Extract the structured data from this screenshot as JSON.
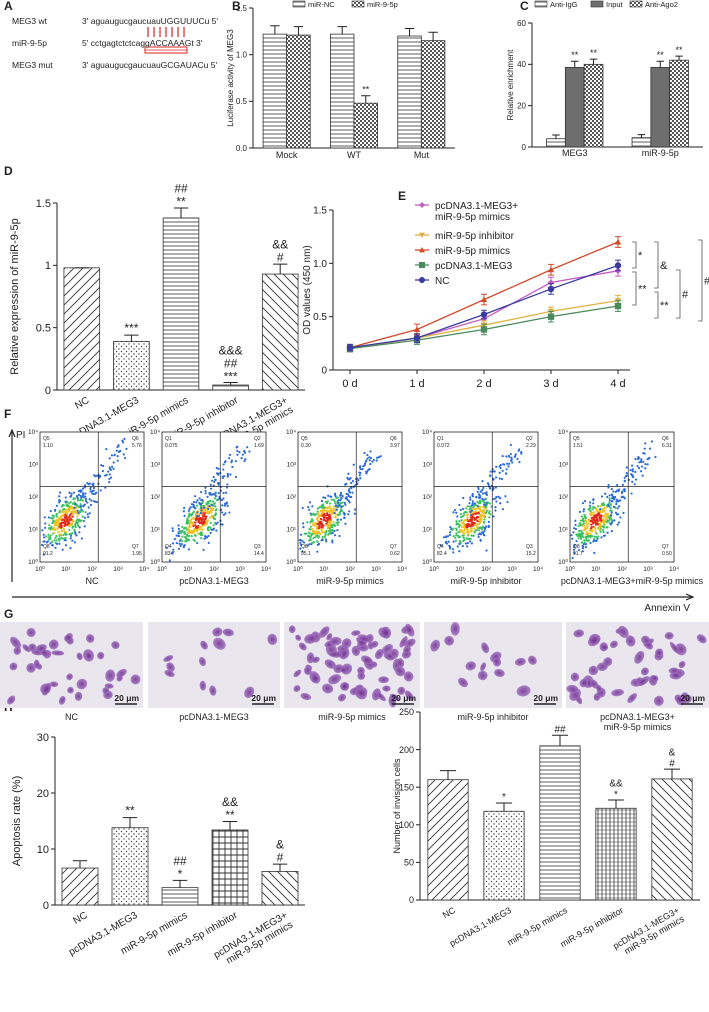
{
  "sequence_panel": {
    "panel": "A",
    "rows": [
      {
        "name": "MEG3 wt",
        "sequence": "3' aguaugucgaucuauUGGUUUCu 5'"
      },
      {
        "name": "miR-9-5p",
        "sequence": "5' cctgagtctctcaggACCAAAGt 3'"
      },
      {
        "name": "MEG3 mut",
        "sequence": "3' aguaugucgaucuauGCGAUACu 5'"
      }
    ]
  },
  "chart_data": [
    {
      "panel": "B",
      "type": "bar",
      "y_label": "Luciferase activity of MEG3",
      "categories": [
        "Mock",
        "WT",
        "Mut"
      ],
      "series": [
        {
          "name": "miR-NC",
          "pattern": "hlines",
          "values": [
            1.22,
            1.22,
            1.2
          ],
          "errors": [
            0.09,
            0.08,
            0.08
          ]
        },
        {
          "name": "miR-9-5p",
          "pattern": "checker",
          "values": [
            1.21,
            0.48,
            1.15
          ],
          "errors": [
            0.09,
            0.08,
            0.09
          ],
          "annotations": [
            null,
            "**",
            null
          ]
        }
      ],
      "ylim": [
        0,
        1.5
      ],
      "yticks": [
        {
          "value": 0,
          "label": "0.0"
        },
        0.5,
        {
          "value": 1,
          "label": "1.0"
        },
        1.5
      ],
      "legend": "top"
    },
    {
      "panel": "C",
      "type": "bar",
      "y_label": "Relative enrichment",
      "categories": [
        "MEG3",
        "miR-9-5p"
      ],
      "series": [
        {
          "name": "Anti-IgG",
          "pattern": "hlines",
          "values": [
            4,
            4.5
          ],
          "errors": [
            1.8,
            1.5
          ]
        },
        {
          "name": "Input",
          "pattern": "solid",
          "color": "#6e6e6e",
          "values": [
            38.5,
            38.5
          ],
          "errors": [
            3,
            3
          ],
          "annotations": [
            "**",
            "**"
          ]
        },
        {
          "name": "Anti-Ago2",
          "pattern": "checker",
          "values": [
            40,
            42
          ],
          "errors": [
            2.5,
            2
          ],
          "annotations": [
            "**",
            "**"
          ]
        }
      ],
      "ylim": [
        0,
        60
      ],
      "yticks": [
        0,
        20,
        40,
        60
      ],
      "legend": "top"
    },
    {
      "panel": "D",
      "type": "bar",
      "y_label": "Relative expression of miR-9-5p",
      "categories": [
        "NC",
        "pcDNA3.1-MEG3",
        "miR-9-5p mimics",
        "miR-9-5p inhibitor",
        "pcDNA3.1-MEG3+\nmiR-9-5p mimics"
      ],
      "values": [
        0.98,
        0.39,
        1.38,
        0.04,
        0.93
      ],
      "errors": [
        0,
        0.05,
        0.08,
        0.02,
        0.08
      ],
      "annotations": [
        null,
        "***",
        "##\n**",
        "&&&\n##\n***",
        "&&\n#"
      ],
      "patterns": [
        "diag",
        "dots",
        "hlines",
        "hlines",
        "backdiag"
      ],
      "ylim": [
        0,
        1.5
      ],
      "yticks": [
        0,
        0.5,
        1,
        1.5
      ]
    },
    {
      "panel": "E",
      "type": "line",
      "y_label": "OD values (450 nm)",
      "categories": [
        "0 d",
        "1 d",
        "2 d",
        "3 d",
        "4 d"
      ],
      "series": [
        {
          "name": "pcDNA3.1-MEG3+\nmiR-9-5p mimics",
          "color": "#c45cc4",
          "marker": "diamond",
          "values": [
            0.2,
            0.3,
            0.48,
            0.82,
            0.93
          ],
          "errors": [
            0.03,
            0.04,
            0.04,
            0.05,
            0.05
          ]
        },
        {
          "name": "miR-9-5p inhibitor",
          "color": "#e0b040",
          "marker": "tri-down",
          "values": [
            0.2,
            0.3,
            0.42,
            0.55,
            0.65
          ],
          "errors": [
            0.03,
            0.04,
            0.04,
            0.04,
            0.05
          ]
        },
        {
          "name": "miR-9-5p mimics",
          "color": "#d24a2a",
          "marker": "tri",
          "values": [
            0.21,
            0.38,
            0.66,
            0.94,
            1.2
          ],
          "errors": [
            0.03,
            0.05,
            0.05,
            0.05,
            0.05
          ]
        },
        {
          "name": "pcDNA3.1-MEG3",
          "color": "#4a8a5a",
          "marker": "square",
          "values": [
            0.2,
            0.28,
            0.38,
            0.5,
            0.6
          ],
          "errors": [
            0.03,
            0.04,
            0.05,
            0.05,
            0.05
          ]
        },
        {
          "name": "NC",
          "color": "#3a3aa0",
          "marker": "circle",
          "values": [
            0.21,
            0.3,
            0.52,
            0.76,
            0.98
          ],
          "errors": [
            0.03,
            0.04,
            0.04,
            0.05,
            0.05
          ]
        }
      ],
      "ylim": [
        0,
        1.5
      ],
      "yticks": [
        0,
        0.5,
        {
          "value": 1,
          "label": "1.0"
        },
        1.5
      ],
      "bracket_labels": [
        "*",
        "**",
        "&",
        "**",
        "#",
        "##"
      ]
    },
    {
      "panel": "H",
      "type": "bar",
      "y_label": "Apoptosis rate (%)",
      "categories": [
        "NC",
        "pcDNA3.1-MEG3",
        "miR-9-5p mimics",
        "miR-9-5p inhibitor",
        "pcDNA3.1-MEG3+\nmiR-9-5p mimics"
      ],
      "values": [
        6.6,
        13.8,
        3.1,
        13.4,
        6.0
      ],
      "errors": [
        1.3,
        1.8,
        1.3,
        1.5,
        1.3
      ],
      "annotations": [
        null,
        "**",
        "##\n*",
        "&&\n**",
        "&\n#"
      ],
      "patterns": [
        "diag",
        "dots",
        "hlines",
        "grid",
        "backdiag"
      ],
      "ylim": [
        0,
        30
      ],
      "yticks": [
        0,
        10,
        20,
        30
      ]
    },
    {
      "panel": "I",
      "type": "bar",
      "y_label": "Number of invision cells",
      "categories": [
        "NC",
        "pcDNA3.1-MEG3",
        "miR-9-5p mimics",
        "miR-9-5p inhibitor",
        "pcDNA3.1-MEG3+\nmiR-9-5p mimics"
      ],
      "values": [
        160,
        118,
        205,
        122,
        161
      ],
      "errors": [
        12,
        11,
        14,
        11,
        13
      ],
      "annotations": [
        null,
        "*",
        "##",
        "&&\n*",
        "&\n#"
      ],
      "patterns": [
        "diag",
        "dots",
        "hlines",
        "vlines",
        "backdiag"
      ],
      "ylim": [
        0,
        250
      ],
      "yticks": [
        0,
        50,
        100,
        150,
        200,
        250
      ]
    }
  ],
  "flow_panel": {
    "panel": "F",
    "y_label": "PI",
    "x_label": "Annexin V",
    "ticks": [
      "10⁰",
      "10¹",
      "10²",
      "10³",
      "10⁴"
    ],
    "plots": [
      {
        "caption": "NC",
        "quadrants": [
          {
            "name": "Q5",
            "value": "1.10"
          },
          {
            "name": "Q6",
            "value": "5.76"
          },
          {
            "name": "Q8",
            "value": "91.2"
          },
          {
            "name": "Q7",
            "value": "1.95"
          }
        ]
      },
      {
        "caption": "pcDNA3.1-MEG3",
        "quadrants": [
          {
            "name": "Q1",
            "value": "0.075"
          },
          {
            "name": "Q2",
            "value": "1.69"
          },
          {
            "name": "Q4",
            "value": "83.7"
          },
          {
            "name": "Q3",
            "value": "14.4"
          }
        ]
      },
      {
        "caption": "miR-9-5p mimics",
        "quadrants": [
          {
            "name": "Q5",
            "value": "0.30"
          },
          {
            "name": "Q6",
            "value": "3.97"
          },
          {
            "name": "Q8",
            "value": "95.1"
          },
          {
            "name": "Q7",
            "value": "0.62"
          }
        ]
      },
      {
        "caption": "miR-9-5p inhibitor",
        "quadrants": [
          {
            "name": "Q1",
            "value": "0.072"
          },
          {
            "name": "Q2",
            "value": "2.29"
          },
          {
            "name": "Q4",
            "value": "82.4"
          },
          {
            "name": "Q3",
            "value": "15.2"
          }
        ]
      },
      {
        "caption": "pcDNA3.1-MEG3+miR-9-5p mimics",
        "quadrants": [
          {
            "name": "Q5",
            "value": "1.51"
          },
          {
            "name": "Q6",
            "value": "6.31"
          },
          {
            "name": "Q8",
            "value": "91.7"
          },
          {
            "name": "Q7",
            "value": "0.50"
          }
        ]
      }
    ]
  },
  "image_panel": {
    "panel": "G",
    "scale_bar": "20 μm",
    "captions": [
      "NC",
      "pcDNA3.1-MEG3",
      "miR-9-5p mimics",
      "miR-9-5p inhibitor",
      "pcDNA3.1-MEG3+\nmiR-9-5p mimics"
    ]
  }
}
